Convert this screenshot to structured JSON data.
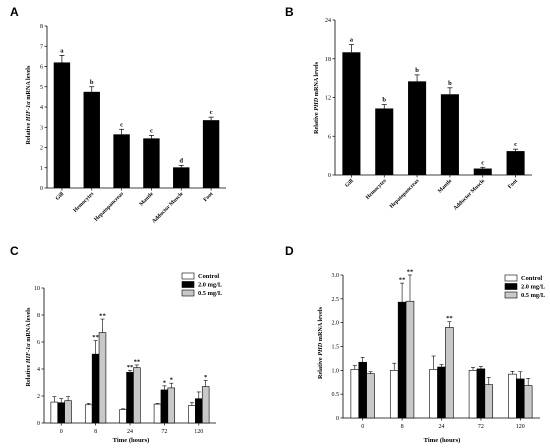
{
  "colors": {
    "bar": "#000000",
    "control": "#ffffff",
    "high": "#000000",
    "low": "#c8c8c8",
    "stroke": "#000000"
  },
  "chart_data": [
    {
      "id": "A",
      "panel_label": "A",
      "type": "bar",
      "categories": [
        "Gill",
        "Hemocytes",
        "Hepatopancreas",
        "Mantle",
        "Adductor Muscle",
        "Foot"
      ],
      "values": [
        6.2,
        4.75,
        2.65,
        2.45,
        1.02,
        3.35
      ],
      "errors": [
        0.35,
        0.25,
        0.25,
        0.15,
        0.1,
        0.15
      ],
      "letters": [
        "a",
        "b",
        "c",
        "c",
        "d",
        "c"
      ],
      "ylabel_parts": [
        "Relative ",
        "HIF-1α",
        " mRNA levels"
      ],
      "ylim": [
        0,
        8
      ],
      "yticks": [
        "0",
        "1",
        "2",
        "3",
        "4",
        "5",
        "6",
        "7",
        "8"
      ]
    },
    {
      "id": "B",
      "panel_label": "B",
      "type": "bar",
      "categories": [
        "Gill",
        "Hemocytes",
        "Hepatopancreas",
        "Mantle",
        "Adductor Muscle",
        "Foot"
      ],
      "values": [
        19.0,
        10.3,
        14.5,
        12.5,
        1.0,
        3.7
      ],
      "errors": [
        1.2,
        0.6,
        1.0,
        1.0,
        0.2,
        0.3
      ],
      "letters": [
        "a",
        "b",
        "b",
        "b",
        "c",
        "c"
      ],
      "ylabel_parts": [
        "Relative ",
        "PHD",
        " mRNA levels"
      ],
      "ylim": [
        0,
        24
      ],
      "yticks": [
        "0",
        "6",
        "12",
        "18",
        "24"
      ]
    },
    {
      "id": "C",
      "panel_label": "C",
      "type": "bar",
      "categories": [
        "0",
        "8",
        "24",
        "72",
        "120"
      ],
      "series": [
        {
          "name": "Control",
          "values": [
            1.55,
            1.35,
            1.0,
            1.4,
            1.3
          ],
          "errors": [
            0.4,
            0.1,
            0.05,
            0.05,
            0.2
          ],
          "sig": [
            "",
            "",
            "",
            "",
            ""
          ]
        },
        {
          "name": "2.0 mg/L",
          "values": [
            1.5,
            5.1,
            3.75,
            2.45,
            1.8
          ],
          "errors": [
            0.3,
            1.0,
            0.15,
            0.3,
            0.5
          ],
          "sig": [
            "",
            "**",
            "**",
            "*",
            ""
          ]
        },
        {
          "name": "0.5 mg/L",
          "values": [
            1.65,
            6.7,
            4.1,
            2.6,
            2.7
          ],
          "errors": [
            0.3,
            1.0,
            0.2,
            0.35,
            0.45
          ],
          "sig": [
            "",
            "**",
            "**",
            "*",
            "*"
          ]
        }
      ],
      "xlabel": "Time (hours)",
      "ylabel_parts": [
        "Relative ",
        "HIF-1α",
        " mRNA levels"
      ],
      "ylim": [
        0,
        10
      ],
      "yticks": [
        "0",
        "2",
        "4",
        "6",
        "8",
        "10"
      ],
      "legend": "top-right"
    },
    {
      "id": "D",
      "panel_label": "D",
      "type": "bar",
      "categories": [
        "0",
        "8",
        "24",
        "72",
        "120"
      ],
      "series": [
        {
          "name": "Control",
          "values": [
            1.02,
            1.0,
            1.02,
            1.0,
            0.92
          ],
          "errors": [
            0.08,
            0.15,
            0.28,
            0.06,
            0.06
          ],
          "sig": [
            "",
            "",
            "",
            "",
            ""
          ]
        },
        {
          "name": "2.0 mg/L",
          "values": [
            1.17,
            2.43,
            1.07,
            1.03,
            0.82
          ],
          "errors": [
            0.1,
            0.4,
            0.05,
            0.05,
            0.15
          ],
          "sig": [
            "",
            "**",
            "",
            "",
            ""
          ]
        },
        {
          "name": "0.5 mg/L",
          "values": [
            0.93,
            2.45,
            1.9,
            0.7,
            0.68
          ],
          "errors": [
            0.04,
            0.55,
            0.12,
            0.15,
            0.15
          ],
          "sig": [
            "",
            "**",
            "**",
            "",
            ""
          ]
        }
      ],
      "xlabel": "Time (hours)",
      "ylabel_parts": [
        "Relative ",
        "PHD",
        " mRNA levels"
      ],
      "ylim": [
        0,
        3.0
      ],
      "yticks": [
        "0",
        "0.5",
        "1.0",
        "1.5",
        "2.0",
        "2.5",
        "3.0"
      ],
      "legend": "top-right"
    }
  ]
}
